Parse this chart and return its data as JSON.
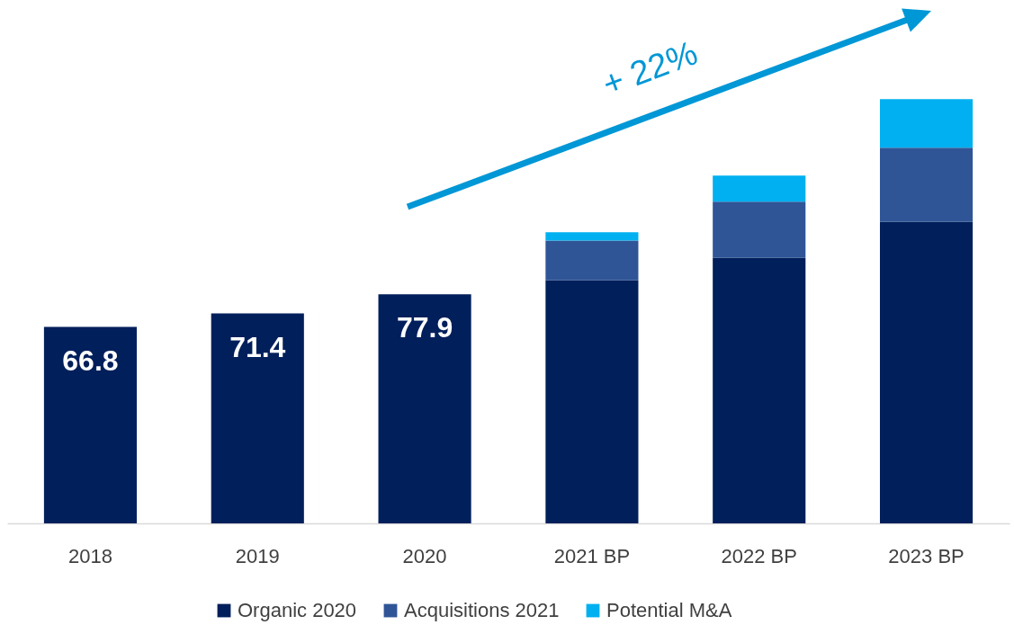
{
  "chart_data": {
    "type": "bar",
    "stacked": true,
    "categories": [
      "2018",
      "2019",
      "2020",
      "2021 BP",
      "2022 BP",
      "2023 BP"
    ],
    "series": [
      {
        "name": "Organic 2020",
        "color": "#001f5b",
        "values": [
          66.8,
          71.4,
          77.9,
          82.7,
          90.4,
          102.6
        ],
        "value_labels": [
          "66.8",
          "71.4",
          "77.9",
          null,
          null,
          null
        ]
      },
      {
        "name": "Acquisitions 2021",
        "color": "#2f5597",
        "values": [
          null,
          null,
          null,
          13.5,
          19.0,
          25.2
        ]
      },
      {
        "name": "Potential M&A",
        "color": "#00b0f0",
        "values": [
          null,
          null,
          null,
          2.8,
          8.9,
          16.5
        ]
      }
    ],
    "ylim": [
      0,
      178
    ],
    "legend": "bottom",
    "annotations": [
      "+ 22%"
    ]
  }
}
